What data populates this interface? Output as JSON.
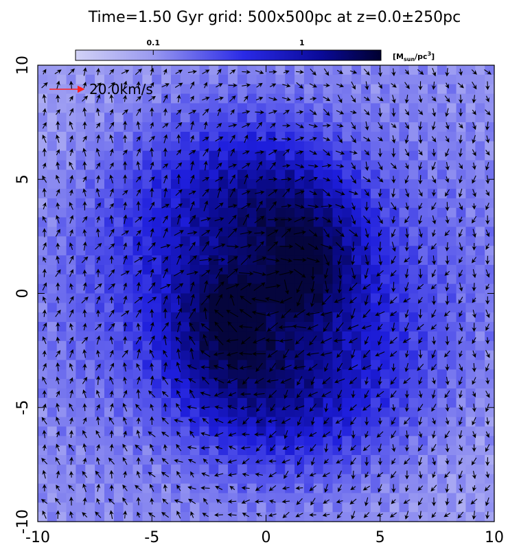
{
  "chart_data": {
    "type": "vector_field",
    "title": "Time=1.50 Gyr  grid: 500x500pc at z=0.0±250pc",
    "xlim": [
      -10,
      10
    ],
    "xticks": [
      -10,
      -5,
      0,
      5,
      10
    ],
    "ylim": [
      -10,
      10
    ],
    "yticks": [
      -10,
      -5,
      0,
      5,
      10
    ],
    "colorbar": {
      "lim": [
        0.03,
        3.4
      ],
      "log": true,
      "ticks": [
        0.1,
        1
      ],
      "label": {
        "open": "[M",
        "sub": "sun",
        "mid": "/pc",
        "sup": "3",
        "close": "]"
      }
    },
    "annotation": {
      "text": "20.0km/s",
      "color": "#ff2020"
    }
  }
}
